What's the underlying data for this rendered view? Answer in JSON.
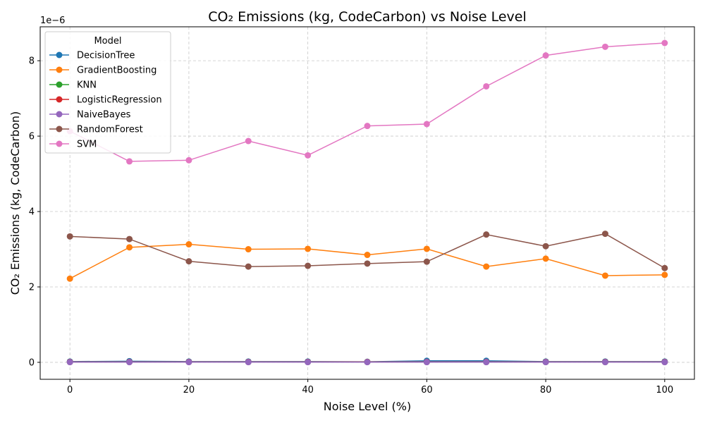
{
  "chart_data": {
    "type": "line",
    "title": "CO₂ Emissions (kg, CodeCarbon) vs Noise Level",
    "xlabel": "Noise Level (%)",
    "ylabel": "CO₂ Emissions (kg, CodeCarbon)",
    "y_offset_label": "1e−6",
    "y_scale_factor": 1e-06,
    "xlim": [
      -5,
      105
    ],
    "ylim": [
      -4.5e-07,
      8.9e-06
    ],
    "x_ticks": [
      0,
      20,
      40,
      60,
      80,
      100
    ],
    "y_ticks": [
      0,
      2e-06,
      4e-06,
      6e-06,
      8e-06
    ],
    "y_tick_labels": [
      "0",
      "2",
      "4",
      "6",
      "8"
    ],
    "grid": true,
    "legend_title": "Model",
    "legend_position": "top-left",
    "x": [
      0,
      10,
      20,
      30,
      40,
      50,
      60,
      70,
      80,
      90,
      100
    ],
    "series": [
      {
        "name": "DecisionTree",
        "color": "#1f77b4",
        "values": [
          2e-08,
          3e-08,
          2e-08,
          2e-08,
          2e-08,
          1.5e-08,
          4e-08,
          4e-08,
          2e-08,
          2e-08,
          2e-08
        ]
      },
      {
        "name": "GradientBoosting",
        "color": "#ff7f0e",
        "values": [
          2.22e-06,
          3.05e-06,
          3.13e-06,
          3e-06,
          3.01e-06,
          2.85e-06,
          3.01e-06,
          2.54e-06,
          2.75e-06,
          2.3e-06,
          2.32e-06
        ]
      },
      {
        "name": "KNN",
        "color": "#2ca02c",
        "values": [
          1e-08,
          1e-08,
          1e-08,
          1e-08,
          1e-08,
          1e-08,
          1e-08,
          1e-08,
          1e-08,
          1e-08,
          1e-08
        ]
      },
      {
        "name": "LogisticRegression",
        "color": "#d62728",
        "values": [
          1e-08,
          1e-08,
          1e-08,
          1e-08,
          1e-08,
          1e-08,
          1e-08,
          1e-08,
          1e-08,
          1e-08,
          1e-08
        ]
      },
      {
        "name": "NaiveBayes",
        "color": "#9467bd",
        "values": [
          5e-09,
          5e-09,
          5e-09,
          5e-09,
          5e-09,
          5e-09,
          5e-09,
          5e-09,
          5e-09,
          5e-09,
          5e-09
        ]
      },
      {
        "name": "RandomForest",
        "color": "#8c564b",
        "values": [
          3.34e-06,
          3.27e-06,
          2.68e-06,
          2.54e-06,
          2.56e-06,
          2.62e-06,
          2.67e-06,
          3.39e-06,
          3.08e-06,
          3.41e-06,
          2.5e-06
        ]
      },
      {
        "name": "SVM",
        "color": "#e377c2",
        "values": [
          6.13e-06,
          5.33e-06,
          5.36e-06,
          5.87e-06,
          5.49e-06,
          6.27e-06,
          6.32e-06,
          7.32e-06,
          8.14e-06,
          8.37e-06,
          8.47e-06
        ]
      }
    ]
  }
}
